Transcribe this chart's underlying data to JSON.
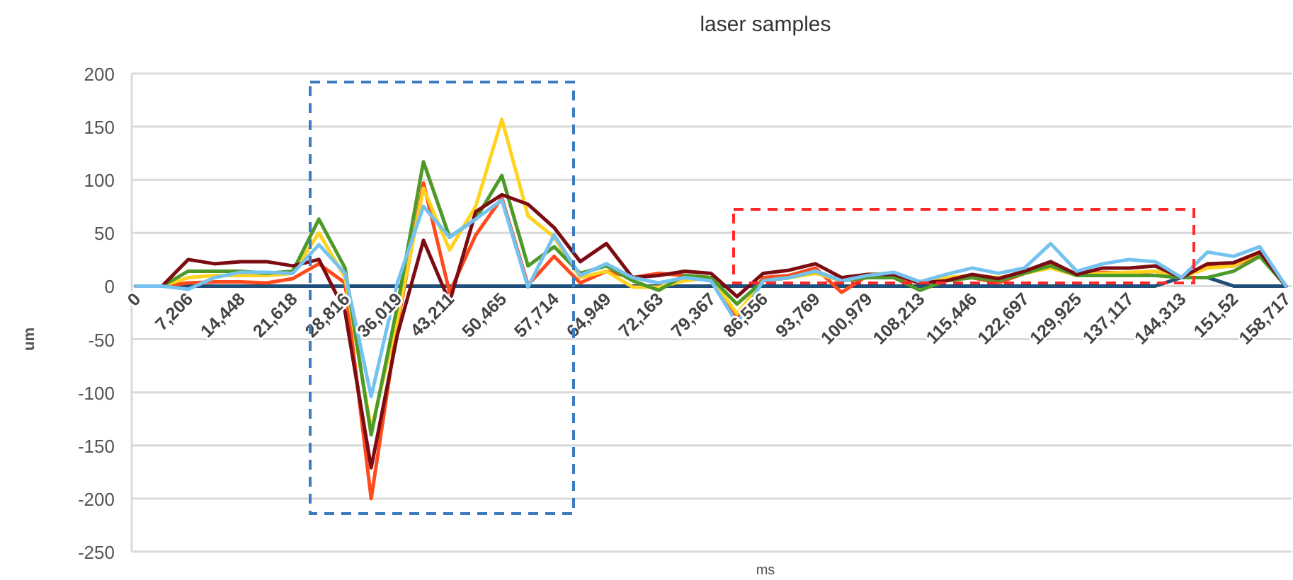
{
  "chart_data": {
    "type": "line",
    "title": "laser samples",
    "xlabel": "ms",
    "ylabel": "um",
    "categories": [
      "0",
      null,
      "7,206",
      null,
      "14,448",
      null,
      "21,618",
      null,
      "28,816",
      null,
      "36,019",
      null,
      "43,211",
      null,
      "50,465",
      null,
      "57,714",
      null,
      "64,949",
      null,
      "72,163",
      null,
      "79,367",
      null,
      "86,556",
      null,
      "93,769",
      null,
      "100,979",
      null,
      "108,213",
      null,
      "115,446",
      null,
      "122,697",
      null,
      "129,925",
      null,
      "137,117",
      null,
      "144,313",
      null,
      "151,52",
      null,
      "158,717"
    ],
    "ylim": [
      -250,
      200
    ],
    "yticks": [
      -250,
      -200,
      -150,
      -100,
      -50,
      0,
      50,
      100,
      150,
      200
    ],
    "grid": "y",
    "marker": "none",
    "line_style": "solid",
    "series": [
      {
        "color": "#1f4e79",
        "values": [
          0,
          0,
          0,
          0,
          0,
          0,
          0,
          0,
          0,
          0,
          0,
          0,
          0,
          0,
          0,
          0,
          0,
          0,
          0,
          0,
          0,
          0,
          0,
          0,
          0,
          0,
          0,
          0,
          0,
          0,
          0,
          0,
          0,
          0,
          0,
          0,
          0,
          0,
          0,
          0,
          8,
          8,
          0,
          0,
          0
        ]
      },
      {
        "color": "#ff4a1c",
        "values": [
          0,
          0,
          3,
          4,
          4,
          3,
          7,
          21,
          3,
          -200,
          -37,
          97,
          -6,
          48,
          83,
          1,
          28,
          3,
          14,
          8,
          12,
          10,
          8,
          -30,
          8,
          10,
          17,
          -6,
          10,
          8,
          3,
          8,
          8,
          3,
          12,
          21,
          10,
          13,
          12,
          14,
          8,
          19,
          19,
          30,
          0
        ]
      },
      {
        "color": "#ffd31f",
        "values": [
          0,
          0,
          8,
          10,
          10,
          10,
          12,
          50,
          8,
          -135,
          -32,
          92,
          34,
          75,
          157,
          66,
          46,
          8,
          14,
          -1,
          -1,
          5,
          8,
          -26,
          5,
          8,
          12,
          5,
          11,
          12,
          4,
          8,
          10,
          8,
          12,
          17,
          10,
          12,
          13,
          14,
          8,
          17,
          19,
          32,
          0
        ]
      },
      {
        "color": "#4e9a28",
        "values": [
          0,
          0,
          14,
          14,
          14,
          12,
          14,
          63,
          17,
          -140,
          -19,
          117,
          46,
          63,
          104,
          19,
          37,
          12,
          19,
          5,
          -4,
          10,
          8,
          -17,
          5,
          8,
          14,
          5,
          8,
          8,
          -4,
          5,
          8,
          5,
          12,
          19,
          10,
          10,
          10,
          10,
          8,
          8,
          14,
          28,
          0
        ]
      },
      {
        "color": "#7b0c12",
        "values": [
          0,
          0,
          25,
          21,
          23,
          23,
          19,
          25,
          -24,
          -171,
          -46,
          43,
          -15,
          70,
          86,
          77,
          55,
          23,
          40,
          8,
          10,
          14,
          12,
          -10,
          12,
          15,
          21,
          8,
          11,
          11,
          3,
          5,
          11,
          7,
          14,
          23,
          11,
          17,
          17,
          19,
          8,
          21,
          22,
          32,
          0
        ]
      },
      {
        "color": "#75c2f0",
        "values": [
          0,
          0,
          -3,
          8,
          13,
          13,
          12,
          39,
          12,
          -104,
          3,
          75,
          46,
          63,
          81,
          -1,
          48,
          10,
          21,
          8,
          3,
          8,
          5,
          -35,
          5,
          8,
          14,
          5,
          10,
          13,
          4,
          11,
          17,
          12,
          17,
          40,
          14,
          21,
          25,
          23,
          8,
          32,
          28,
          37,
          0
        ]
      }
    ]
  }
}
